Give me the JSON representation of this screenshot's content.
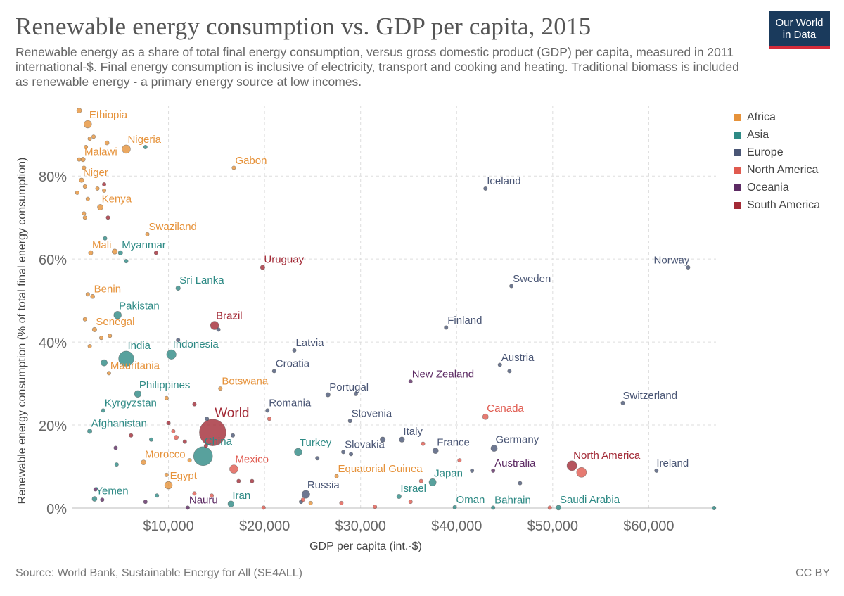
{
  "header": {
    "title": "Renewable energy consumption vs. GDP per capita, 2015",
    "subtitle": "Renewable energy as a share of total final energy consumption, versus gross domestic product (GDP) per capita, measured in 2011 international-$. Final energy consumption is inclusive of electricity, transport and cooking and heating. Traditional biomass is included as renewable energy - a primary energy source at low incomes.",
    "logo_line1": "Our World",
    "logo_line2": "in Data"
  },
  "footer": {
    "source": "Source: World Bank, Sustainable Energy for All (SE4ALL)",
    "license": "CC BY"
  },
  "colors": {
    "Africa": "#e6923a",
    "Asia": "#2e8a85",
    "Europe": "#4a5675",
    "North America": "#e05a4f",
    "Oceania": "#5c2a63",
    "South America": "#a32a36",
    "World": "#a32a36"
  },
  "legend": [
    {
      "name": "Africa"
    },
    {
      "name": "Asia"
    },
    {
      "name": "Europe"
    },
    {
      "name": "North America"
    },
    {
      "name": "Oceania"
    },
    {
      "name": "South America"
    }
  ],
  "chart_data": {
    "type": "scatter",
    "title": "Renewable energy consumption vs. GDP per capita, 2015",
    "xlabel": "GDP per capita (int.-$)",
    "ylabel": "Renewable energy consumption (% of total final energy consumption)",
    "xlim": [
      0,
      67000
    ],
    "ylim": [
      0,
      97
    ],
    "xticks": [
      {
        "value": 10000,
        "label": "$10,000"
      },
      {
        "value": 20000,
        "label": "$20,000"
      },
      {
        "value": 30000,
        "label": "$30,000"
      },
      {
        "value": 40000,
        "label": "$40,000"
      },
      {
        "value": 50000,
        "label": "$50,000"
      },
      {
        "value": 60000,
        "label": "$60,000"
      }
    ],
    "yticks": [
      {
        "value": 0,
        "label": "0%"
      },
      {
        "value": 20,
        "label": "20%"
      },
      {
        "value": 40,
        "label": "40%"
      },
      {
        "value": 60,
        "label": "60%"
      },
      {
        "value": 80,
        "label": "80%"
      }
    ],
    "grid": true,
    "legend_position": "right",
    "series": [
      {
        "name": "Africa",
        "points": [
          {
            "label": "Ethiopia",
            "x": 1600,
            "y": 92.5,
            "size": 2.0
          },
          {
            "label": "Nigeria",
            "x": 5600,
            "y": 86.5,
            "size": 2.2
          },
          {
            "label": "Malawi",
            "x": 1100,
            "y": 84,
            "size": 1.2
          },
          {
            "label": "Gabon",
            "x": 16800,
            "y": 82,
            "size": 1.0
          },
          {
            "label": "Niger",
            "x": 950,
            "y": 79,
            "size": 1.2
          },
          {
            "label": "Kenya",
            "x": 2900,
            "y": 72.5,
            "size": 1.5
          },
          {
            "label": "Swaziland",
            "x": 7800,
            "y": 66,
            "size": 1.0
          },
          {
            "label": "Mali",
            "x": 1900,
            "y": 61.5,
            "size": 1.2
          },
          {
            "label": "Benin",
            "x": 2100,
            "y": 51,
            "size": 1.1
          },
          {
            "label": "Senegal",
            "x": 2300,
            "y": 43,
            "size": 1.2
          },
          {
            "label": "Mauritania",
            "x": 3800,
            "y": 32.5,
            "size": 1.0
          },
          {
            "label": "Botswana",
            "x": 15400,
            "y": 28.8,
            "size": 1.0
          },
          {
            "label": "Morocco",
            "x": 7400,
            "y": 11,
            "size": 1.3
          },
          {
            "label": "Egypt",
            "x": 10000,
            "y": 5.5,
            "size": 2.0
          },
          {
            "label": "Equatorial Guinea",
            "x": 27500,
            "y": 7.7,
            "size": 1.0
          },
          {
            "label": "",
            "x": 700,
            "y": 95.8,
            "size": 1.3
          },
          {
            "label": "",
            "x": 1400,
            "y": 87,
            "size": 1.0
          },
          {
            "label": "",
            "x": 1800,
            "y": 89,
            "size": 1.0
          },
          {
            "label": "",
            "x": 2200,
            "y": 89.5,
            "size": 1.0
          },
          {
            "label": "",
            "x": 3600,
            "y": 88,
            "size": 1.1
          },
          {
            "label": "",
            "x": 700,
            "y": 84,
            "size": 1.0
          },
          {
            "label": "",
            "x": 1200,
            "y": 82,
            "size": 1.0
          },
          {
            "label": "",
            "x": 1300,
            "y": 77.5,
            "size": 1.0
          },
          {
            "label": "",
            "x": 2600,
            "y": 77,
            "size": 1.0
          },
          {
            "label": "",
            "x": 3300,
            "y": 76.5,
            "size": 1.0
          },
          {
            "label": "",
            "x": 500,
            "y": 76,
            "size": 1.0
          },
          {
            "label": "",
            "x": 1600,
            "y": 74.5,
            "size": 1.0
          },
          {
            "label": "",
            "x": 1200,
            "y": 71,
            "size": 1.0
          },
          {
            "label": "",
            "x": 1300,
            "y": 70,
            "size": 1.0
          },
          {
            "label": "",
            "x": 4400,
            "y": 61.8,
            "size": 1.4
          },
          {
            "label": "",
            "x": 1600,
            "y": 51.5,
            "size": 1.0
          },
          {
            "label": "",
            "x": 1300,
            "y": 45.5,
            "size": 1.0
          },
          {
            "label": "",
            "x": 3000,
            "y": 41,
            "size": 1.0
          },
          {
            "label": "",
            "x": 3900,
            "y": 41.5,
            "size": 1.0
          },
          {
            "label": "",
            "x": 1800,
            "y": 39,
            "size": 1.0
          },
          {
            "label": "",
            "x": 9800,
            "y": 26.5,
            "size": 1.0
          },
          {
            "label": "",
            "x": 12200,
            "y": 11.5,
            "size": 1.0
          },
          {
            "label": "",
            "x": 9800,
            "y": 8,
            "size": 1.0
          },
          {
            "label": "",
            "x": 24800,
            "y": 1.2,
            "size": 1.0
          }
        ]
      },
      {
        "name": "Asia",
        "points": [
          {
            "label": "Myanmar",
            "x": 5000,
            "y": 61.5,
            "size": 1.2
          },
          {
            "label": "Sri Lanka",
            "x": 11000,
            "y": 53,
            "size": 1.2
          },
          {
            "label": "Pakistan",
            "x": 4700,
            "y": 46.5,
            "size": 2.0
          },
          {
            "label": "India",
            "x": 5600,
            "y": 36,
            "size": 4.0
          },
          {
            "label": "Indonesia",
            "x": 10300,
            "y": 37,
            "size": 2.5
          },
          {
            "label": "Philippines",
            "x": 6800,
            "y": 27.5,
            "size": 1.8
          },
          {
            "label": "Kyrgyzstan",
            "x": 3200,
            "y": 23.5,
            "size": 1.0
          },
          {
            "label": "Afghanistan",
            "x": 1800,
            "y": 18.5,
            "size": 1.2
          },
          {
            "label": "China",
            "x": 13600,
            "y": 12.5,
            "size": 5.0
          },
          {
            "label": "Turkey",
            "x": 23500,
            "y": 13.5,
            "size": 2.0
          },
          {
            "label": "Yemen",
            "x": 2300,
            "y": 2.2,
            "size": 1.3
          },
          {
            "label": "Iran",
            "x": 16500,
            "y": 1.0,
            "size": 1.6
          },
          {
            "label": "Israel",
            "x": 34000,
            "y": 2.8,
            "size": 1.2
          },
          {
            "label": "Japan",
            "x": 37500,
            "y": 6.2,
            "size": 1.9
          },
          {
            "label": "Oman",
            "x": 39800,
            "y": 0.2,
            "size": 1.0
          },
          {
            "label": "Bahrain",
            "x": 43800,
            "y": 0.1,
            "size": 1.0
          },
          {
            "label": "Saudi Arabia",
            "x": 50600,
            "y": 0.1,
            "size": 1.3
          },
          {
            "label": "",
            "x": 7600,
            "y": 87,
            "size": 1.0
          },
          {
            "label": "",
            "x": 3400,
            "y": 65,
            "size": 1.0
          },
          {
            "label": "",
            "x": 5600,
            "y": 59.5,
            "size": 1.0
          },
          {
            "label": "",
            "x": 3300,
            "y": 35,
            "size": 1.7
          },
          {
            "label": "",
            "x": 8200,
            "y": 16.5,
            "size": 1.0
          },
          {
            "label": "",
            "x": 4600,
            "y": 10.5,
            "size": 1.0
          },
          {
            "label": "",
            "x": 8800,
            "y": 3,
            "size": 1.0
          },
          {
            "label": "",
            "x": 66800,
            "y": 0,
            "size": 1.0
          }
        ]
      },
      {
        "name": "Europe",
        "points": [
          {
            "label": "Iceland",
            "x": 43000,
            "y": 77,
            "size": 1.0
          },
          {
            "label": "Norway",
            "x": 64100,
            "y": 58,
            "size": 1.0
          },
          {
            "label": "Sweden",
            "x": 45700,
            "y": 53.5,
            "size": 1.0
          },
          {
            "label": "Finland",
            "x": 38900,
            "y": 43.5,
            "size": 1.0
          },
          {
            "label": "Latvia",
            "x": 23100,
            "y": 38,
            "size": 1.0
          },
          {
            "label": "Austria",
            "x": 44500,
            "y": 34.5,
            "size": 1.0
          },
          {
            "label": "Croatia",
            "x": 21000,
            "y": 33,
            "size": 1.0
          },
          {
            "label": "Portugal",
            "x": 26600,
            "y": 27.3,
            "size": 1.2
          },
          {
            "label": "Switzerland",
            "x": 57300,
            "y": 25.3,
            "size": 1.0
          },
          {
            "label": "Romania",
            "x": 20300,
            "y": 23.5,
            "size": 1.0
          },
          {
            "label": "Slovenia",
            "x": 28900,
            "y": 21,
            "size": 1.0
          },
          {
            "label": "Italy",
            "x": 34300,
            "y": 16.5,
            "size": 1.4
          },
          {
            "label": "France",
            "x": 37800,
            "y": 13.8,
            "size": 1.5
          },
          {
            "label": "Germany",
            "x": 43900,
            "y": 14.4,
            "size": 1.7
          },
          {
            "label": "Slovakia",
            "x": 28200,
            "y": 13.5,
            "size": 1.0
          },
          {
            "label": "Ireland",
            "x": 60800,
            "y": 9,
            "size": 1.0
          },
          {
            "label": "Russia",
            "x": 24300,
            "y": 3.3,
            "size": 2.1
          },
          {
            "label": "",
            "x": 45500,
            "y": 33,
            "size": 1.0
          },
          {
            "label": "",
            "x": 11000,
            "y": 40.5,
            "size": 1.0
          },
          {
            "label": "",
            "x": 15200,
            "y": 43,
            "size": 1.0
          },
          {
            "label": "",
            "x": 29500,
            "y": 27.5,
            "size": 1.0
          },
          {
            "label": "",
            "x": 32300,
            "y": 16.5,
            "size": 1.4
          },
          {
            "label": "",
            "x": 25500,
            "y": 12,
            "size": 1.0
          },
          {
            "label": "",
            "x": 29000,
            "y": 13,
            "size": 1.0
          },
          {
            "label": "",
            "x": 41600,
            "y": 9,
            "size": 1.0
          },
          {
            "label": "",
            "x": 46600,
            "y": 6,
            "size": 1.0
          },
          {
            "label": "",
            "x": 16700,
            "y": 17.5,
            "size": 1.0
          },
          {
            "label": "",
            "x": 14000,
            "y": 21.5,
            "size": 1.0
          },
          {
            "label": "",
            "x": 23800,
            "y": 1.5,
            "size": 1.0
          }
        ]
      },
      {
        "name": "North America",
        "points": [
          {
            "label": "Canada",
            "x": 43000,
            "y": 22,
            "size": 1.5
          },
          {
            "label": "Mexico",
            "x": 16800,
            "y": 9.4,
            "size": 2.2
          },
          {
            "label": "",
            "x": 53000,
            "y": 8.6,
            "size": 2.6
          },
          {
            "label": "",
            "x": 10500,
            "y": 18.5,
            "size": 1.0
          },
          {
            "label": "",
            "x": 10800,
            "y": 17,
            "size": 1.2
          },
          {
            "label": "",
            "x": 12700,
            "y": 3.5,
            "size": 1.0
          },
          {
            "label": "",
            "x": 14500,
            "y": 3,
            "size": 1.0
          },
          {
            "label": "",
            "x": 20500,
            "y": 21.5,
            "size": 1.0
          },
          {
            "label": "",
            "x": 36300,
            "y": 6.5,
            "size": 1.0
          },
          {
            "label": "",
            "x": 36500,
            "y": 15.5,
            "size": 1.0
          },
          {
            "label": "",
            "x": 40300,
            "y": 11.5,
            "size": 1.0
          },
          {
            "label": "",
            "x": 24000,
            "y": 2,
            "size": 1.0
          },
          {
            "label": "",
            "x": 28000,
            "y": 1.2,
            "size": 1.0
          },
          {
            "label": "",
            "x": 35200,
            "y": 1.5,
            "size": 1.0
          },
          {
            "label": "",
            "x": 19900,
            "y": 0.1,
            "size": 1.0
          },
          {
            "label": "",
            "x": 31500,
            "y": 0.3,
            "size": 1.0
          },
          {
            "label": "",
            "x": 49700,
            "y": 0.1,
            "size": 1.0
          }
        ]
      },
      {
        "name": "Oceania",
        "points": [
          {
            "label": "New Zealand",
            "x": 35200,
            "y": 30.5,
            "size": 1.0
          },
          {
            "label": "Australia",
            "x": 43800,
            "y": 9,
            "size": 1.0
          },
          {
            "label": "Nauru",
            "x": 12000,
            "y": 0.1,
            "size": 1.0
          },
          {
            "label": "",
            "x": 7600,
            "y": 1.5,
            "size": 1.0
          },
          {
            "label": "",
            "x": 3100,
            "y": 2,
            "size": 1.0
          },
          {
            "label": "",
            "x": 4500,
            "y": 14.5,
            "size": 1.0
          },
          {
            "label": "",
            "x": 2400,
            "y": 4.5,
            "size": 1.0
          }
        ]
      },
      {
        "name": "South America",
        "points": [
          {
            "label": "Uruguay",
            "x": 19800,
            "y": 58,
            "size": 1.2
          },
          {
            "label": "Brazil",
            "x": 14800,
            "y": 44,
            "size": 2.2
          },
          {
            "label": "North America",
            "x": 52000,
            "y": 10.2,
            "size": 2.6
          },
          {
            "label": "",
            "x": 3700,
            "y": 70,
            "size": 1.0
          },
          {
            "label": "",
            "x": 8700,
            "y": 61.5,
            "size": 1.0
          },
          {
            "label": "",
            "x": 10000,
            "y": 20.5,
            "size": 1.0
          },
          {
            "label": "",
            "x": 12700,
            "y": 25,
            "size": 1.0
          },
          {
            "label": "",
            "x": 17300,
            "y": 6.5,
            "size": 1.0
          },
          {
            "label": "",
            "x": 18700,
            "y": 6.5,
            "size": 1.0
          },
          {
            "label": "",
            "x": 11700,
            "y": 16,
            "size": 1.0
          },
          {
            "label": "",
            "x": 13900,
            "y": 15,
            "size": 1.0
          },
          {
            "label": "",
            "x": 6100,
            "y": 17.5,
            "size": 1.0
          },
          {
            "label": "",
            "x": 3300,
            "y": 78,
            "size": 1.0
          }
        ]
      },
      {
        "name": "World",
        "points": [
          {
            "label": "World",
            "x": 14600,
            "y": 18.2,
            "size": 7.0
          }
        ]
      }
    ]
  }
}
